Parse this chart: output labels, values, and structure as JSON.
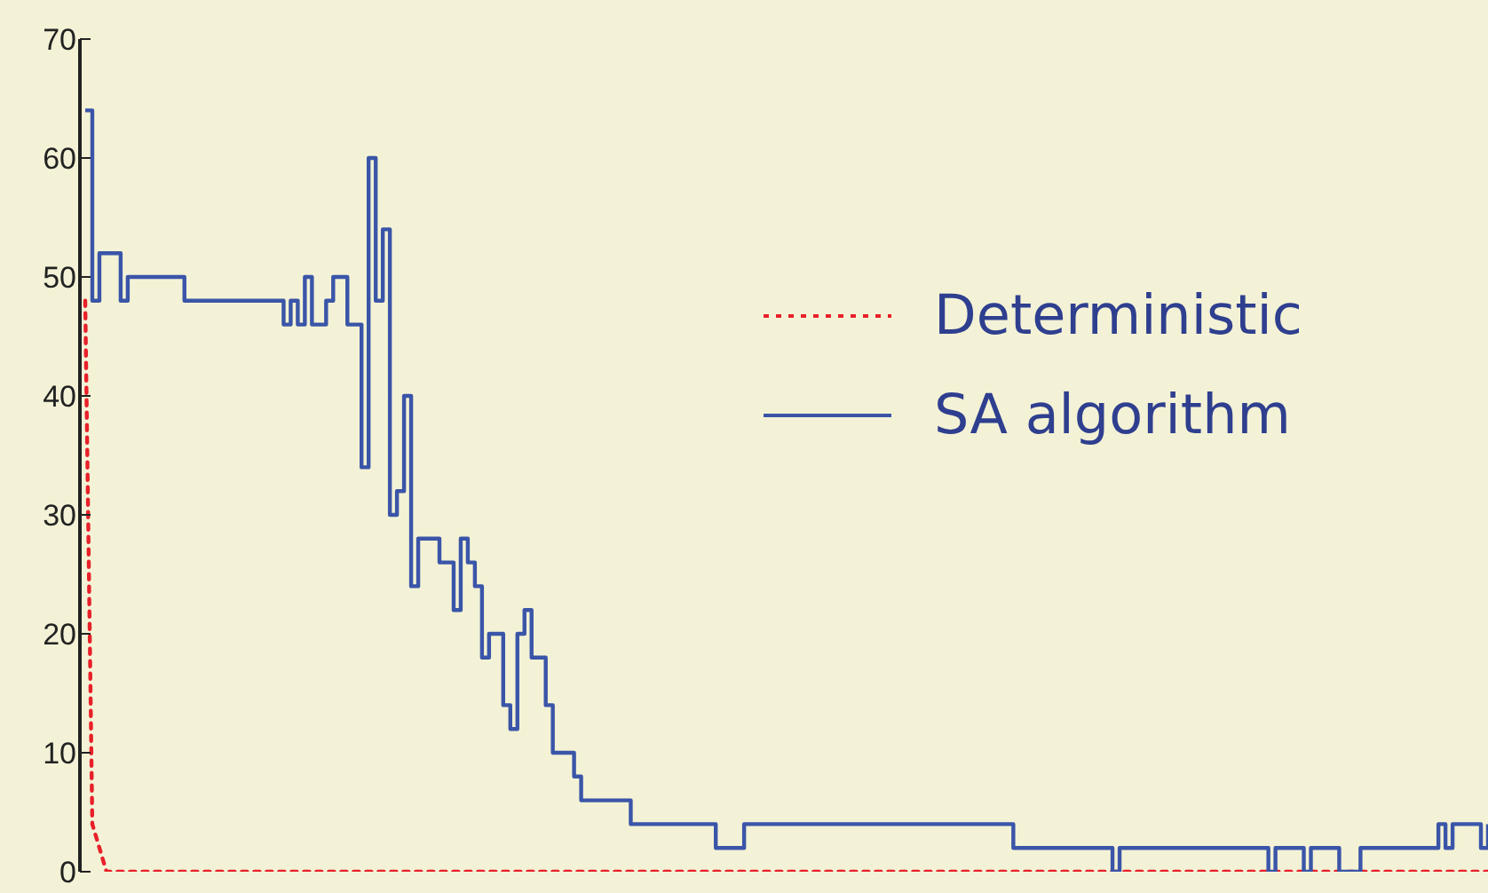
{
  "chart_data": {
    "type": "step",
    "categories": [
      null,
      null,
      null,
      null,
      null,
      null,
      null,
      null,
      null,
      null,
      null,
      null,
      null,
      null,
      null,
      null,
      null,
      null,
      null,
      null,
      null,
      null,
      null,
      null,
      null,
      null,
      null,
      null,
      null,
      null,
      null,
      null,
      null,
      null,
      null,
      null,
      null,
      null,
      null,
      null,
      null,
      null,
      null,
      null,
      null,
      null,
      null,
      null,
      null,
      null,
      null,
      null,
      null,
      null,
      null,
      null,
      null,
      null,
      null,
      null,
      null,
      null,
      null,
      null,
      null,
      null,
      null,
      null,
      null,
      null,
      null,
      null,
      null,
      null,
      null,
      null,
      null,
      null,
      null,
      null,
      null,
      null,
      null,
      null,
      null,
      null,
      null,
      null,
      null,
      null,
      null,
      null,
      null,
      null,
      null,
      null,
      null,
      null,
      null,
      null,
      null,
      null,
      null,
      null,
      null,
      null,
      null,
      null,
      null,
      null,
      null,
      null,
      null,
      null,
      null,
      null,
      null,
      null,
      null,
      null,
      null,
      null,
      null,
      null,
      null,
      null,
      null,
      null,
      null,
      null,
      null,
      null,
      null,
      null,
      null,
      null,
      null,
      null,
      null,
      null,
      null,
      null,
      null,
      null,
      null,
      null,
      null,
      null,
      null,
      null,
      null,
      null,
      null,
      null,
      null,
      null,
      null,
      null,
      null,
      null,
      null,
      null,
      null,
      null,
      null,
      null,
      null,
      null,
      null,
      null,
      null,
      null,
      null,
      null,
      null,
      null,
      null,
      null,
      null,
      null,
      null,
      null,
      null,
      null,
      null,
      null,
      null,
      null,
      null,
      null,
      null,
      null,
      null,
      null,
      null,
      null,
      null,
      null,
      null
    ],
    "ylim": [
      0,
      70
    ],
    "yticks": [
      0,
      10,
      20,
      30,
      40,
      50,
      60,
      70
    ],
    "tick_labels": "y",
    "legend": "right",
    "marker": "none",
    "series": [
      {
        "name": "Deterministic",
        "type": "line",
        "line_style": "dashed",
        "color": "#e8202a",
        "values": [
          48,
          4,
          2,
          0,
          0,
          0,
          0,
          0,
          0,
          0,
          0,
          0,
          0,
          0,
          0,
          0,
          0,
          0,
          0,
          0,
          0,
          0,
          0,
          0,
          0,
          0,
          0,
          0,
          0,
          0,
          0,
          0,
          0,
          0,
          0,
          0,
          0,
          0,
          0,
          0,
          0,
          0,
          0,
          0,
          0,
          0,
          0,
          0,
          0,
          0,
          0,
          0,
          0,
          0,
          0,
          0,
          0,
          0,
          0,
          0,
          0,
          0,
          0,
          0,
          0,
          0,
          0,
          0,
          0,
          0,
          0,
          0,
          0,
          0,
          0,
          0,
          0,
          0,
          0,
          0,
          0,
          0,
          0,
          0,
          0,
          0,
          0,
          0,
          0,
          0,
          0,
          0,
          0,
          0,
          0,
          0,
          0,
          0,
          0,
          0,
          0,
          0,
          0,
          0,
          0,
          0,
          0,
          0,
          0,
          0,
          0,
          0,
          0,
          0,
          0,
          0,
          0,
          0,
          0,
          0,
          0,
          0,
          0,
          0,
          0,
          0,
          0,
          0,
          0,
          0,
          0,
          0,
          0,
          0,
          0,
          0,
          0,
          0,
          0,
          0,
          0,
          0,
          0,
          0,
          0,
          0,
          0,
          0,
          0,
          0,
          0,
          0,
          0,
          0,
          0,
          0,
          0,
          0,
          0,
          0,
          0,
          0,
          0,
          0,
          0,
          0,
          0,
          0,
          0,
          0,
          0,
          0,
          0,
          0,
          0,
          0,
          0,
          0,
          0,
          0,
          0,
          0,
          0,
          0,
          0,
          0,
          0,
          0,
          0,
          0,
          0,
          0,
          0,
          0,
          0,
          0,
          0,
          0,
          0
        ]
      },
      {
        "name": "SA algorithm",
        "line_style": "solid",
        "color": "#3a55a8",
        "values": [
          64,
          48,
          52,
          52,
          52,
          48,
          50,
          50,
          50,
          50,
          50,
          50,
          50,
          50,
          48,
          48,
          48,
          48,
          48,
          48,
          48,
          48,
          48,
          48,
          48,
          48,
          48,
          48,
          46,
          48,
          46,
          50,
          46,
          46,
          48,
          50,
          50,
          46,
          46,
          34,
          60,
          48,
          54,
          30,
          32,
          40,
          24,
          28,
          28,
          28,
          26,
          26,
          22,
          28,
          26,
          24,
          18,
          20,
          20,
          14,
          12,
          20,
          22,
          18,
          18,
          14,
          10,
          10,
          10,
          8,
          6,
          6,
          6,
          6,
          6,
          6,
          6,
          4,
          4,
          4,
          4,
          4,
          4,
          4,
          4,
          4,
          4,
          4,
          4,
          2,
          2,
          2,
          2,
          4,
          4,
          4,
          4,
          4,
          4,
          4,
          4,
          4,
          4,
          4,
          4,
          4,
          4,
          4,
          4,
          4,
          4,
          4,
          4,
          4,
          4,
          4,
          4,
          4,
          4,
          4,
          4,
          4,
          4,
          4,
          4,
          4,
          4,
          4,
          4,
          4,
          4,
          2,
          2,
          2,
          2,
          2,
          2,
          2,
          2,
          2,
          2,
          2,
          2,
          2,
          2,
          0,
          2,
          2,
          2,
          2,
          2,
          2,
          2,
          2,
          2,
          2,
          2,
          2,
          2,
          2,
          2,
          2,
          2,
          2,
          2,
          2,
          2,
          0,
          2,
          2,
          2,
          2,
          0,
          2,
          2,
          2,
          2,
          0,
          0,
          0,
          2,
          2,
          2,
          2,
          2,
          2,
          2,
          2,
          2,
          2,
          2,
          4,
          2,
          4,
          4,
          4,
          4,
          2,
          4
        ]
      }
    ]
  }
}
